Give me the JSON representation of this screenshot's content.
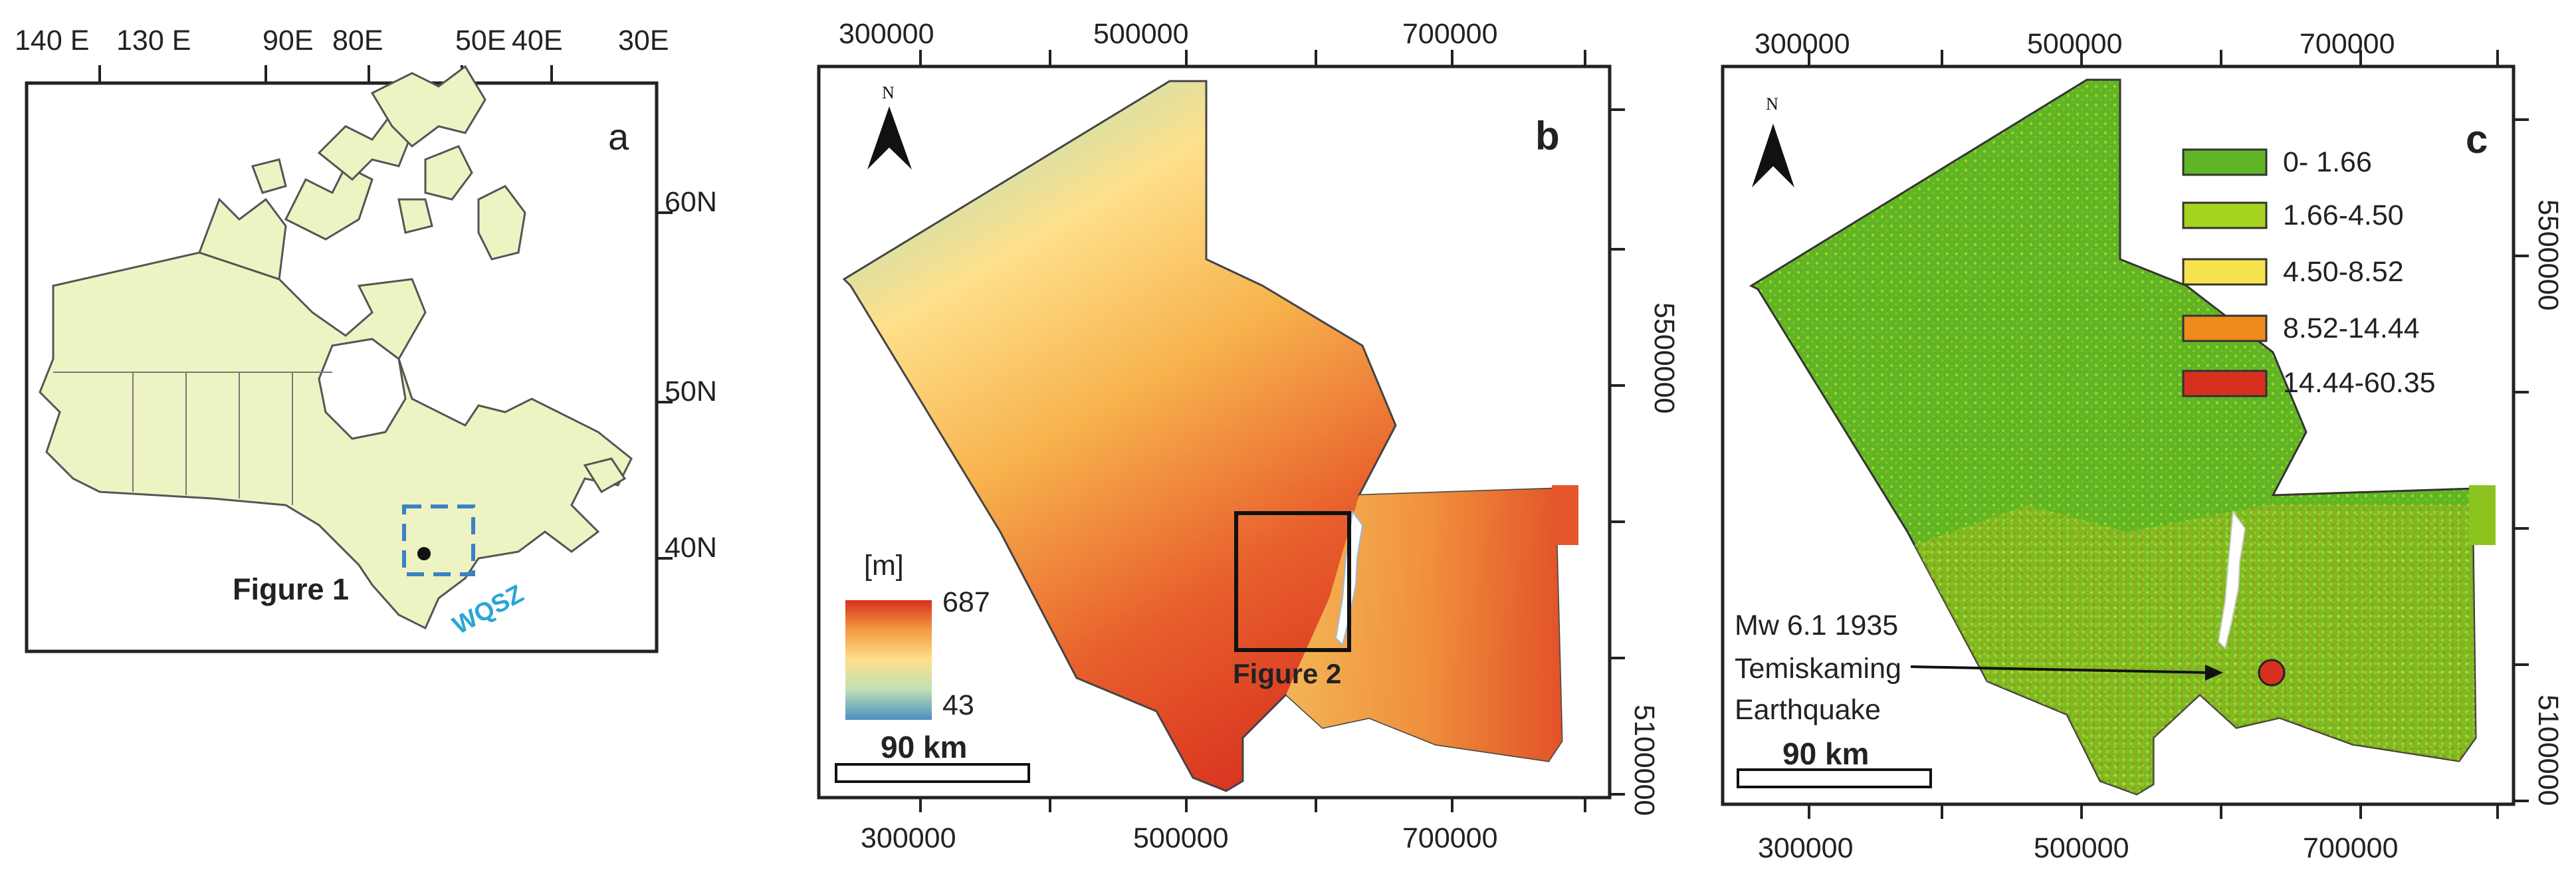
{
  "panel_a": {
    "letter": "a",
    "top_labels": [
      "140 E",
      "130 E",
      "90E",
      "80E",
      "50E",
      "40E",
      "30E"
    ],
    "lat_labels": [
      "60N",
      "50N",
      "40N"
    ],
    "figure_label": "Figure 1",
    "zone_label": "WQSZ",
    "colors": {
      "land": "#eef3c3",
      "box": "#3b82c4",
      "zone": "#2aa6d6"
    }
  },
  "panel_b": {
    "letter": "b",
    "north": "N",
    "x_ticks": [
      "300000",
      "500000",
      "700000"
    ],
    "y_ticks": [
      "5500000",
      "5100000"
    ],
    "legend_unit": "[m]",
    "legend_max": "687",
    "legend_min": "43",
    "scale_label": "90 km",
    "inset_label": "Figure 2",
    "colors": {
      "high": "#d7301f",
      "mid": "#fee08b",
      "low": "#4a90c2"
    }
  },
  "panel_c": {
    "letter": "c",
    "north": "N",
    "x_ticks": [
      "300000",
      "500000",
      "700000"
    ],
    "y_ticks": [
      "5500000",
      "5100000"
    ],
    "legend": [
      {
        "label": "0- 1.66",
        "color": "#5fb526"
      },
      {
        "label": "1.66-4.50",
        "color": "#a6d31f"
      },
      {
        "label": "4.50-8.52",
        "color": "#f7e34d"
      },
      {
        "label": "8.52-14.44",
        "color": "#ef8a1c"
      },
      {
        "label": "14.44-60.35",
        "color": "#d7301f"
      }
    ],
    "scale_label": "90 km",
    "event_lines": [
      "Mw 6.1 1935",
      "Temiskaming",
      "Earthquake"
    ]
  }
}
